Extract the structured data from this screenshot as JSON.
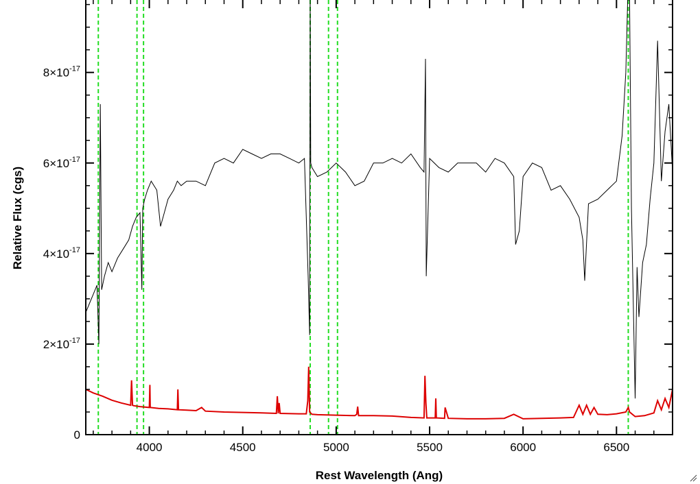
{
  "chart_data": {
    "type": "line",
    "title": "",
    "xlabel": "Rest Wavelength (Ang)",
    "ylabel": "Relative Flux (cgs)",
    "xlim": [
      3660,
      6800
    ],
    "ylim": [
      0,
      9.6e-17
    ],
    "x_ticks": [
      {
        "value": 4000,
        "label": "4000"
      },
      {
        "value": 4500,
        "label": "4500"
      },
      {
        "value": 5000,
        "label": "5000"
      },
      {
        "value": 5500,
        "label": "5500"
      },
      {
        "value": 6000,
        "label": "6000"
      },
      {
        "value": 6500,
        "label": "6500"
      }
    ],
    "y_ticks": [
      {
        "value": 0,
        "mantissa": "0",
        "exponent": ""
      },
      {
        "value": 2e-17,
        "mantissa": "2×10",
        "exponent": "-17"
      },
      {
        "value": 4e-17,
        "mantissa": "4×10",
        "exponent": "-17"
      },
      {
        "value": 6e-17,
        "mantissa": "6×10",
        "exponent": "-17"
      },
      {
        "value": 8e-17,
        "mantissa": "8×10",
        "exponent": "-17"
      }
    ],
    "grid": false,
    "series": [
      {
        "color": "#000000",
        "x": [
          3660,
          3680,
          3700,
          3720,
          3730,
          3738,
          3745,
          3760,
          3780,
          3800,
          3830,
          3860,
          3890,
          3910,
          3930,
          3950,
          3960,
          3965,
          3975,
          3990,
          4010,
          4040,
          4060,
          4080,
          4100,
          4130,
          4150,
          4170,
          4200,
          4250,
          4300,
          4350,
          4400,
          4450,
          4500,
          4550,
          4600,
          4650,
          4700,
          4750,
          4800,
          4830,
          4850,
          4858,
          4861,
          4864,
          4870,
          4900,
          4950,
          5000,
          5050,
          5100,
          5150,
          5200,
          5250,
          5300,
          5350,
          5400,
          5450,
          5470,
          5478,
          5482,
          5500,
          5550,
          5600,
          5650,
          5700,
          5750,
          5800,
          5850,
          5900,
          5950,
          5960,
          5980,
          6000,
          6050,
          6100,
          6150,
          6200,
          6250,
          6300,
          6320,
          6330,
          6350,
          6400,
          6450,
          6500,
          6530,
          6550,
          6560,
          6563,
          6566,
          6570,
          6580,
          6600,
          6610,
          6620,
          6640,
          6660,
          6680,
          6700,
          6720,
          6740,
          6760,
          6780,
          6800
        ],
        "y": [
          2.7e-17,
          2.9e-17,
          3.1e-17,
          3.3e-17,
          2e-17,
          7.3e-17,
          3.2e-17,
          3.5e-17,
          3.8e-17,
          3.6e-17,
          3.9e-17,
          4.1e-17,
          4.3e-17,
          4.6e-17,
          4.8e-17,
          4.9e-17,
          3.2e-17,
          5e-17,
          5.2e-17,
          5.4e-17,
          5.6e-17,
          5.4e-17,
          4.6e-17,
          4.9e-17,
          5.2e-17,
          5.4e-17,
          5.6e-17,
          5.5e-17,
          5.6e-17,
          5.6e-17,
          5.5e-17,
          6e-17,
          6.1e-17,
          6e-17,
          6.3e-17,
          6.2e-17,
          6.1e-17,
          6.2e-17,
          6.2e-17,
          6.1e-17,
          6e-17,
          6.1e-17,
          3.5e-17,
          2.2e-17,
          9.6e-17,
          6e-17,
          5.9e-17,
          5.7e-17,
          5.8e-17,
          6e-17,
          5.8e-17,
          5.5e-17,
          5.6e-17,
          6e-17,
          6e-17,
          6.1e-17,
          6e-17,
          6.2e-17,
          5.9e-17,
          5.8e-17,
          8.3e-17,
          3.5e-17,
          6.1e-17,
          5.9e-17,
          5.8e-17,
          6e-17,
          6e-17,
          6e-17,
          5.8e-17,
          6.1e-17,
          6e-17,
          5.7e-17,
          4.2e-17,
          4.5e-17,
          5.7e-17,
          6e-17,
          5.9e-17,
          5.4e-17,
          5.5e-17,
          5.2e-17,
          4.8e-17,
          4.3e-17,
          3.4e-17,
          5.1e-17,
          5.2e-17,
          5.4e-17,
          5.6e-17,
          6.6e-17,
          8e-17,
          9.6e-17,
          9.6e-17,
          9.6e-17,
          9.6e-17,
          5e-17,
          8e-18,
          3.7e-17,
          2.6e-17,
          3.8e-17,
          4.2e-17,
          5.2e-17,
          6e-17,
          8.7e-17,
          5.6e-17,
          6.7e-17,
          7.3e-17,
          5.8e-17
        ]
      },
      {
        "color": "#dd0000",
        "x": [
          3660,
          3700,
          3750,
          3800,
          3850,
          3900,
          3905,
          3910,
          3915,
          3950,
          4000,
          4003,
          4005,
          4050,
          4100,
          4150,
          4153,
          4156,
          4200,
          4250,
          4280,
          4300,
          4400,
          4500,
          4600,
          4680,
          4685,
          4690,
          4695,
          4700,
          4800,
          4840,
          4848,
          4853,
          4858,
          4870,
          4900,
          5000,
          5100,
          5110,
          5115,
          5120,
          5200,
          5300,
          5400,
          5470,
          5475,
          5480,
          5485,
          5500,
          5530,
          5533,
          5536,
          5580,
          5583,
          5600,
          5700,
          5800,
          5900,
          5950,
          6000,
          6100,
          6200,
          6270,
          6300,
          6320,
          6340,
          6360,
          6380,
          6400,
          6450,
          6500,
          6550,
          6563,
          6570,
          6600,
          6650,
          6700,
          6720,
          6740,
          6760,
          6780,
          6800
        ],
        "y": [
          1e-17,
          9.2e-18,
          8.5e-18,
          7.6e-18,
          7e-18,
          6.5e-18,
          1.2e-17,
          6.5e-18,
          6.4e-18,
          6.2e-18,
          6e-18,
          1.1e-17,
          6e-18,
          5.8e-18,
          5.7e-18,
          5.5e-18,
          1e-17,
          5.5e-18,
          5.4e-18,
          5.3e-18,
          6e-18,
          5.2e-18,
          5e-18,
          4.9e-18,
          4.8e-18,
          4.7e-18,
          8.5e-18,
          4.7e-18,
          7e-18,
          4.7e-18,
          4.6e-18,
          4.6e-18,
          7.5e-18,
          1.5e-17,
          5e-18,
          4.5e-18,
          4.4e-18,
          4.3e-18,
          4.2e-18,
          4.5e-18,
          6.2e-18,
          4.2e-18,
          4.2e-18,
          4.1e-18,
          3.8e-18,
          3.7e-18,
          1.3e-17,
          7e-18,
          3.7e-18,
          3.7e-18,
          3.7e-18,
          8e-18,
          3.7e-18,
          3.6e-18,
          6e-18,
          3.6e-18,
          3.5e-18,
          3.5e-18,
          3.6e-18,
          4.5e-18,
          3.5e-18,
          3.6e-18,
          3.7e-18,
          3.8e-18,
          6.5e-18,
          4.5e-18,
          6.5e-18,
          4.5e-18,
          6e-18,
          4.5e-18,
          4.4e-18,
          4.6e-18,
          5e-18,
          6e-18,
          5e-18,
          4e-18,
          4.2e-18,
          4.8e-18,
          7.5e-18,
          5.5e-18,
          8e-18,
          6e-18,
          1e-17
        ]
      }
    ],
    "vlines": {
      "color": "#22dd22",
      "style": "dashed",
      "x": [
        3727,
        3934,
        3969,
        4861,
        4959,
        5007,
        6563
      ]
    }
  }
}
